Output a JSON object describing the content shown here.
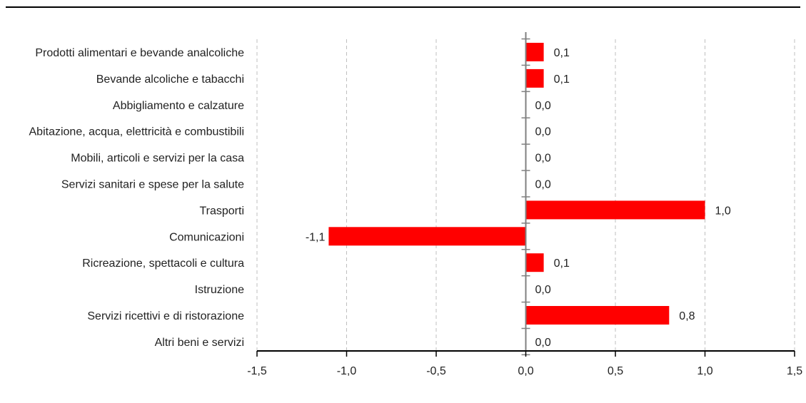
{
  "chart_data": {
    "type": "bar",
    "orientation": "horizontal",
    "title": "",
    "xlabel": "",
    "ylabel": "",
    "categories": [
      "Prodotti alimentari e bevande analcoliche",
      "Bevande alcoliche e tabacchi",
      "Abbigliamento e calzature",
      "Abitazione, acqua, elettricità e combustibili",
      "Mobili, articoli e servizi per la casa",
      "Servizi sanitari e spese per la salute",
      "Trasporti",
      "Comunicazioni",
      "Ricreazione, spettacoli e cultura",
      "Istruzione",
      "Servizi ricettivi e di ristorazione",
      "Altri beni e servizi"
    ],
    "values": [
      0.1,
      0.1,
      0.0,
      0.0,
      0.0,
      0.0,
      1.0,
      -1.1,
      0.1,
      0.0,
      0.8,
      0.0
    ],
    "value_labels": [
      "0,1",
      "0,1",
      "0,0",
      "0,0",
      "0,0",
      "0,0",
      "1,0",
      "-1,1",
      "0,1",
      "0,0",
      "0,8",
      "0,0"
    ],
    "xlim": [
      -1.5,
      1.5
    ],
    "xticks": [
      -1.5,
      -1.0,
      -0.5,
      0.0,
      0.5,
      1.0,
      1.5
    ],
    "xtick_labels": [
      "-1,5",
      "-1,0",
      "-0,5",
      "0,0",
      "0,5",
      "1,0",
      "1,5"
    ],
    "grid": "vertical dashed",
    "legend": "none",
    "bar_color": "#ff0000",
    "grid_color": "#bfbfbf",
    "axis_color": "#000000",
    "zero_axis_color": "#808080",
    "top_rule_color": "#000000"
  }
}
